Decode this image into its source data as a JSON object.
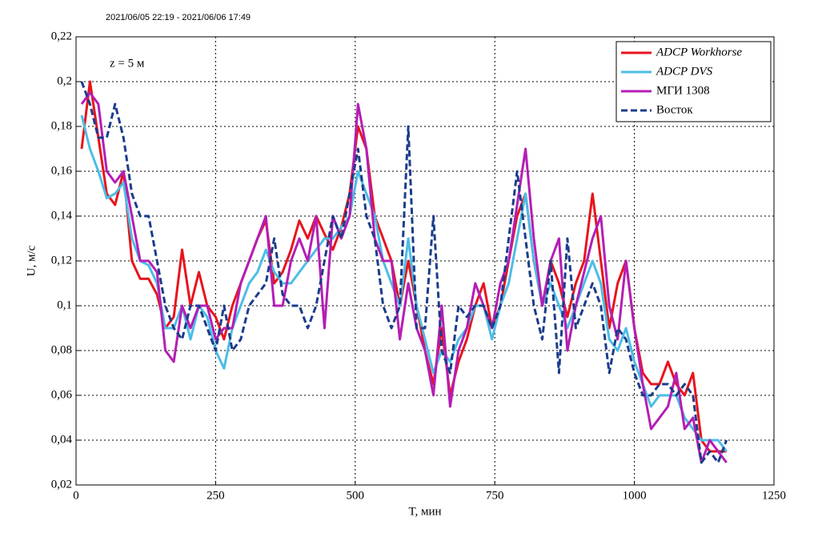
{
  "chart_data": {
    "type": "line",
    "subtitle": "2021/06/05 22:19 - 2021/06/06 17:49",
    "annotation": "z = 5 м",
    "x_label": "T, мин",
    "y_label": "U, м/с",
    "xlim": [
      0,
      1250
    ],
    "xticks": [
      0,
      250,
      500,
      750,
      1000,
      1250
    ],
    "ylim": [
      0.02,
      0.22
    ],
    "yticks": [
      {
        "value": 0.02,
        "label": "0,02"
      },
      {
        "value": 0.04,
        "label": "0,04"
      },
      {
        "value": 0.06,
        "label": "0,06"
      },
      {
        "value": 0.08,
        "label": "0,08"
      },
      {
        "value": 0.1,
        "label": "0,1"
      },
      {
        "value": 0.12,
        "label": "0,12"
      },
      {
        "value": 0.14,
        "label": "0,14"
      },
      {
        "value": 0.16,
        "label": "0,16"
      },
      {
        "value": 0.18,
        "label": "0,18"
      },
      {
        "value": 0.2,
        "label": "0,2"
      },
      {
        "value": 0.22,
        "label": "0,22"
      }
    ],
    "grid": true,
    "legend": "upper right",
    "x": [
      10,
      25,
      40,
      55,
      70,
      85,
      100,
      115,
      130,
      145,
      160,
      175,
      190,
      205,
      220,
      235,
      250,
      265,
      280,
      295,
      310,
      325,
      340,
      355,
      370,
      385,
      400,
      415,
      430,
      445,
      460,
      475,
      490,
      505,
      520,
      535,
      550,
      565,
      580,
      595,
      610,
      625,
      640,
      655,
      670,
      685,
      700,
      715,
      730,
      745,
      760,
      775,
      790,
      805,
      820,
      835,
      850,
      865,
      880,
      895,
      910,
      925,
      940,
      955,
      970,
      985,
      1000,
      1015,
      1030,
      1045,
      1060,
      1075,
      1090,
      1105,
      1120,
      1135,
      1150,
      1165
    ],
    "series": [
      {
        "name": "ADCP Workhorse",
        "color": "#e8141c",
        "dashed": false,
        "values": [
          0.17,
          0.2,
          0.175,
          0.15,
          0.145,
          0.16,
          0.12,
          0.112,
          0.112,
          0.105,
          0.09,
          0.095,
          0.125,
          0.1,
          0.115,
          0.1,
          0.095,
          0.085,
          0.1,
          0.11,
          0.12,
          0.13,
          0.138,
          0.11,
          0.115,
          0.125,
          0.138,
          0.13,
          0.14,
          0.132,
          0.125,
          0.135,
          0.15,
          0.18,
          0.17,
          0.14,
          0.13,
          0.12,
          0.1,
          0.12,
          0.1,
          0.08,
          0.065,
          0.09,
          0.06,
          0.075,
          0.085,
          0.1,
          0.11,
          0.09,
          0.1,
          0.12,
          0.14,
          0.15,
          0.12,
          0.1,
          0.12,
          0.11,
          0.095,
          0.11,
          0.12,
          0.15,
          0.12,
          0.09,
          0.11,
          0.12,
          0.09,
          0.07,
          0.065,
          0.065,
          0.075,
          0.065,
          0.06,
          0.07,
          0.04,
          0.035,
          0.035,
          0.035
        ]
      },
      {
        "name": "ADCP DVS",
        "color": "#4cbde6",
        "dashed": false,
        "values": [
          0.185,
          0.17,
          0.16,
          0.148,
          0.15,
          0.155,
          0.13,
          0.12,
          0.118,
          0.11,
          0.09,
          0.09,
          0.1,
          0.085,
          0.1,
          0.095,
          0.08,
          0.072,
          0.09,
          0.1,
          0.11,
          0.115,
          0.125,
          0.115,
          0.11,
          0.11,
          0.115,
          0.12,
          0.125,
          0.13,
          0.13,
          0.135,
          0.14,
          0.16,
          0.15,
          0.14,
          0.12,
          0.11,
          0.1,
          0.13,
          0.1,
          0.085,
          0.07,
          0.08,
          0.075,
          0.085,
          0.09,
          0.1,
          0.1,
          0.085,
          0.1,
          0.11,
          0.13,
          0.15,
          0.12,
          0.1,
          0.11,
          0.1,
          0.09,
          0.1,
          0.11,
          0.12,
          0.11,
          0.085,
          0.08,
          0.09,
          0.075,
          0.065,
          0.055,
          0.06,
          0.06,
          0.06,
          0.05,
          0.045,
          0.04,
          0.04,
          0.04,
          0.035
        ]
      },
      {
        "name": "МГИ 1308",
        "color": "#b41eb4",
        "dashed": false,
        "values": [
          0.19,
          0.195,
          0.19,
          0.16,
          0.155,
          0.16,
          0.14,
          0.12,
          0.12,
          0.115,
          0.08,
          0.075,
          0.1,
          0.09,
          0.1,
          0.1,
          0.085,
          0.09,
          0.09,
          0.11,
          0.12,
          0.13,
          0.14,
          0.1,
          0.1,
          0.12,
          0.13,
          0.12,
          0.14,
          0.09,
          0.14,
          0.13,
          0.14,
          0.19,
          0.17,
          0.13,
          0.12,
          0.12,
          0.085,
          0.11,
          0.09,
          0.08,
          0.06,
          0.1,
          0.055,
          0.08,
          0.09,
          0.11,
          0.1,
          0.09,
          0.11,
          0.12,
          0.145,
          0.17,
          0.13,
          0.1,
          0.12,
          0.13,
          0.08,
          0.1,
          0.115,
          0.13,
          0.14,
          0.1,
          0.085,
          0.12,
          0.09,
          0.065,
          0.045,
          0.05,
          0.055,
          0.07,
          0.045,
          0.05,
          0.03,
          0.04,
          0.035,
          0.03
        ]
      },
      {
        "name": "Восток",
        "color": "#1c3c8c",
        "dashed": true,
        "values": [
          0.2,
          0.19,
          0.175,
          0.175,
          0.19,
          0.175,
          0.15,
          0.14,
          0.14,
          0.12,
          0.1,
          0.09,
          0.085,
          0.1,
          0.1,
          0.09,
          0.08,
          0.1,
          0.08,
          0.085,
          0.1,
          0.105,
          0.11,
          0.13,
          0.105,
          0.1,
          0.1,
          0.09,
          0.1,
          0.12,
          0.14,
          0.13,
          0.15,
          0.17,
          0.14,
          0.13,
          0.1,
          0.09,
          0.1,
          0.18,
          0.09,
          0.09,
          0.14,
          0.08,
          0.07,
          0.1,
          0.095,
          0.1,
          0.1,
          0.09,
          0.1,
          0.13,
          0.16,
          0.13,
          0.1,
          0.085,
          0.12,
          0.07,
          0.13,
          0.09,
          0.1,
          0.11,
          0.1,
          0.07,
          0.09,
          0.085,
          0.07,
          0.06,
          0.06,
          0.065,
          0.065,
          0.06,
          0.065,
          0.06,
          0.03,
          0.035,
          0.03,
          0.04
        ]
      }
    ]
  }
}
